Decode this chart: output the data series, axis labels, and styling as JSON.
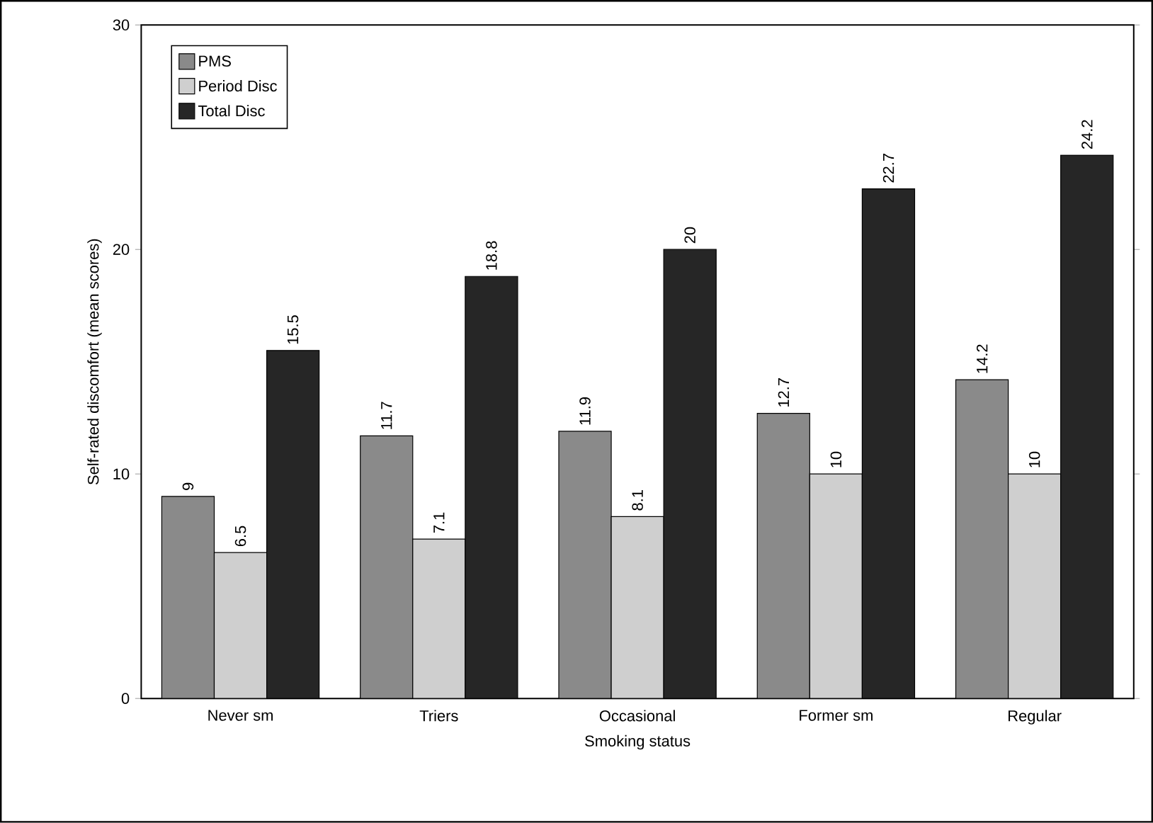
{
  "chart_data": {
    "type": "bar",
    "xlabel": "Smoking status",
    "ylabel": "Self-rated discomfort (mean scores)",
    "categories": [
      "Never sm",
      "Triers",
      "Occasional",
      "Former sm",
      "Regular"
    ],
    "series": [
      {
        "name": "PMS",
        "color": "#8a8a8a",
        "values": [
          9,
          11.7,
          11.9,
          12.7,
          14.2
        ]
      },
      {
        "name": "Period Disc",
        "color": "#cfcfcf",
        "values": [
          6.5,
          7.1,
          8.1,
          10,
          10
        ]
      },
      {
        "name": "Total Disc",
        "color": "#262626",
        "values": [
          15.5,
          18.8,
          20,
          22.7,
          24.2
        ]
      }
    ],
    "ylim": [
      0,
      30
    ],
    "yticks": [
      0,
      10,
      20,
      30
    ],
    "data_labels": true,
    "legend": "top left",
    "grid": false
  }
}
